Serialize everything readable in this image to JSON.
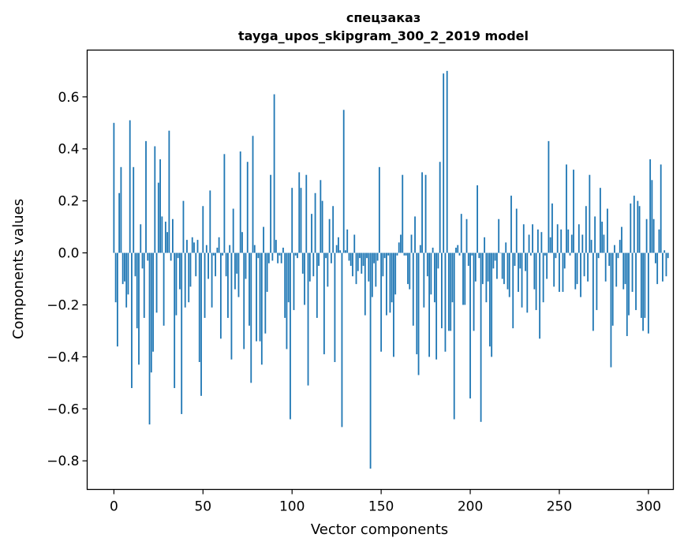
{
  "chart_data": {
    "type": "bar",
    "title_line1": "спецзаказ",
    "title_line2": "tayga_upos_skipgram_300_2_2019 model",
    "xlabel": "Vector components",
    "ylabel": "Components values",
    "xlim": [
      -15,
      314
    ],
    "ylim": [
      -0.91,
      0.78
    ],
    "xticks": [
      0,
      50,
      100,
      150,
      200,
      250,
      300
    ],
    "xtick_labels": [
      "0",
      "50",
      "100",
      "150",
      "200",
      "250",
      "300"
    ],
    "yticks": [
      -0.8,
      -0.6,
      -0.4,
      -0.2,
      0.0,
      0.2,
      0.4,
      0.6
    ],
    "ytick_labels": [
      "−0.8",
      "−0.6",
      "−0.4",
      "−0.2",
      "0.0",
      "0.2",
      "0.4",
      "0.6"
    ],
    "bar_color": "#1f77b4",
    "values": [
      0.5,
      -0.19,
      -0.36,
      0.23,
      0.33,
      -0.12,
      -0.11,
      -0.21,
      -0.16,
      0.51,
      -0.52,
      0.33,
      -0.09,
      -0.29,
      -0.43,
      0.11,
      -0.06,
      -0.25,
      0.43,
      -0.03,
      -0.66,
      -0.46,
      -0.38,
      0.41,
      -0.23,
      0.27,
      0.36,
      0.14,
      -0.28,
      0.12,
      0.08,
      0.47,
      -0.03,
      0.13,
      -0.52,
      -0.24,
      -0.02,
      -0.14,
      -0.62,
      0.2,
      -0.21,
      0.05,
      -0.19,
      -0.13,
      0.06,
      0.04,
      -0.09,
      0.05,
      -0.42,
      -0.55,
      0.18,
      -0.25,
      0.03,
      -0.1,
      0.24,
      -0.21,
      -0.01,
      -0.09,
      0.02,
      0.06,
      -0.33,
      -0.01,
      0.38,
      -0.09,
      -0.25,
      0.03,
      -0.41,
      0.17,
      -0.14,
      -0.08,
      -0.17,
      0.39,
      0.08,
      -0.37,
      -0.1,
      0.35,
      -0.28,
      -0.5,
      0.45,
      0.03,
      -0.34,
      -0.02,
      -0.34,
      -0.43,
      0.1,
      -0.31,
      -0.15,
      -0.04,
      0.3,
      -0.03,
      0.61,
      0.05,
      -0.04,
      -0.01,
      -0.04,
      0.02,
      -0.25,
      -0.37,
      -0.19,
      -0.64,
      0.25,
      -0.22,
      -0.01,
      -0.02,
      0.31,
      0.25,
      -0.08,
      -0.2,
      0.3,
      -0.51,
      -0.11,
      0.15,
      -0.09,
      0.23,
      -0.25,
      -0.05,
      0.28,
      0.2,
      -0.39,
      -0.02,
      -0.13,
      0.13,
      -0.04,
      0.18,
      -0.42,
      0.03,
      0.06,
      0.01,
      -0.67,
      0.55,
      0.01,
      0.09,
      -0.03,
      -0.05,
      -0.09,
      0.07,
      -0.12,
      -0.07,
      -0.02,
      -0.08,
      -0.05,
      -0.24,
      -0.02,
      -0.11,
      -0.83,
      -0.17,
      -0.04,
      -0.13,
      -0.03,
      0.33,
      -0.38,
      -0.09,
      -0.02,
      -0.24,
      -0.01,
      -0.23,
      -0.19,
      -0.4,
      -0.16,
      -0.01,
      0.04,
      0.07,
      0.3,
      -0.01,
      -0.01,
      -0.12,
      -0.14,
      0.07,
      -0.28,
      0.14,
      -0.39,
      -0.47,
      0.03,
      0.31,
      -0.21,
      0.3,
      -0.09,
      -0.4,
      -0.16,
      0.02,
      -0.19,
      -0.41,
      -0.06,
      0.35,
      -0.29,
      0.69,
      -0.38,
      0.7,
      -0.3,
      -0.3,
      -0.19,
      -0.64,
      0.02,
      0.03,
      -0.01,
      0.15,
      -0.2,
      -0.2,
      0.13,
      -0.05,
      -0.56,
      -0.01,
      -0.3,
      -0.11,
      0.26,
      -0.02,
      -0.65,
      -0.12,
      0.06,
      -0.19,
      -0.11,
      -0.36,
      -0.4,
      -0.06,
      -0.03,
      -0.1,
      0.13,
      0.0,
      -0.1,
      -0.12,
      0.04,
      -0.14,
      -0.17,
      0.22,
      -0.29,
      -0.05,
      0.17,
      -0.15,
      -0.06,
      -0.21,
      0.11,
      -0.07,
      -0.23,
      0.07,
      -0.01,
      0.11,
      -0.14,
      -0.22,
      0.09,
      -0.33,
      0.08,
      -0.19,
      -0.01,
      -0.1,
      0.43,
      0.06,
      0.19,
      -0.13,
      -0.02,
      0.11,
      -0.15,
      0.09,
      -0.15,
      -0.06,
      0.34,
      0.09,
      -0.01,
      0.07,
      0.32,
      -0.14,
      -0.12,
      0.11,
      -0.17,
      0.07,
      -0.09,
      0.18,
      -0.11,
      0.3,
      0.05,
      -0.3,
      0.14,
      -0.22,
      -0.02,
      0.25,
      0.12,
      0.07,
      -0.11,
      0.17,
      -0.05,
      -0.44,
      -0.28,
      0.03,
      -0.13,
      -0.02,
      0.05,
      0.1,
      -0.14,
      -0.12,
      -0.32,
      -0.24,
      0.19,
      -0.15,
      0.22,
      -0.22,
      0.2,
      0.18,
      -0.25,
      -0.3,
      -0.25,
      0.13,
      -0.31,
      0.36,
      0.28,
      0.13,
      -0.04,
      -0.12,
      0.09,
      0.34,
      -0.11,
      0.01,
      -0.09,
      -0.02
    ]
  }
}
